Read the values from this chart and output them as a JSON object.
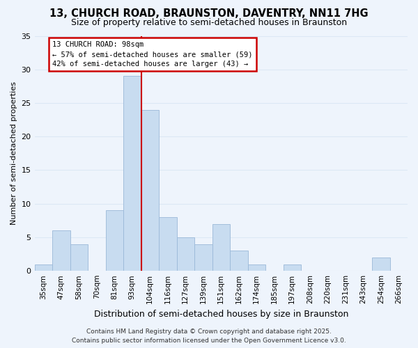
{
  "title": "13, CHURCH ROAD, BRAUNSTON, DAVENTRY, NN11 7HG",
  "subtitle": "Size of property relative to semi-detached houses in Braunston",
  "xlabel": "Distribution of semi-detached houses by size in Braunston",
  "ylabel": "Number of semi-detached properties",
  "bin_labels": [
    "35sqm",
    "47sqm",
    "58sqm",
    "70sqm",
    "81sqm",
    "93sqm",
    "104sqm",
    "116sqm",
    "127sqm",
    "139sqm",
    "151sqm",
    "162sqm",
    "174sqm",
    "185sqm",
    "197sqm",
    "208sqm",
    "220sqm",
    "231sqm",
    "243sqm",
    "254sqm",
    "266sqm"
  ],
  "bar_values": [
    1,
    6,
    4,
    0,
    9,
    29,
    24,
    8,
    5,
    4,
    7,
    3,
    1,
    0,
    1,
    0,
    0,
    0,
    0,
    2,
    0
  ],
  "bar_color": "#c8dcf0",
  "bar_edge_color": "#9ab8d8",
  "vline_x": 6.0,
  "vline_color": "#cc0000",
  "annotation_title": "13 CHURCH ROAD: 98sqm",
  "annotation_line1": "← 57% of semi-detached houses are smaller (59)",
  "annotation_line2": "42% of semi-detached houses are larger (43) →",
  "annotation_box_color": "#ffffff",
  "annotation_box_edge": "#cc0000",
  "footer1": "Contains HM Land Registry data © Crown copyright and database right 2025.",
  "footer2": "Contains public sector information licensed under the Open Government Licence v3.0.",
  "ylim": [
    0,
    35
  ],
  "yticks": [
    0,
    5,
    10,
    15,
    20,
    25,
    30,
    35
  ],
  "grid_color": "#dce8f5",
  "background_color": "#eef4fc",
  "title_fontsize": 10.5,
  "subtitle_fontsize": 9,
  "ylabel_fontsize": 8,
  "xlabel_fontsize": 9,
  "tick_fontsize": 7.5,
  "footer_fontsize": 6.5,
  "annotation_fontsize": 7.5
}
